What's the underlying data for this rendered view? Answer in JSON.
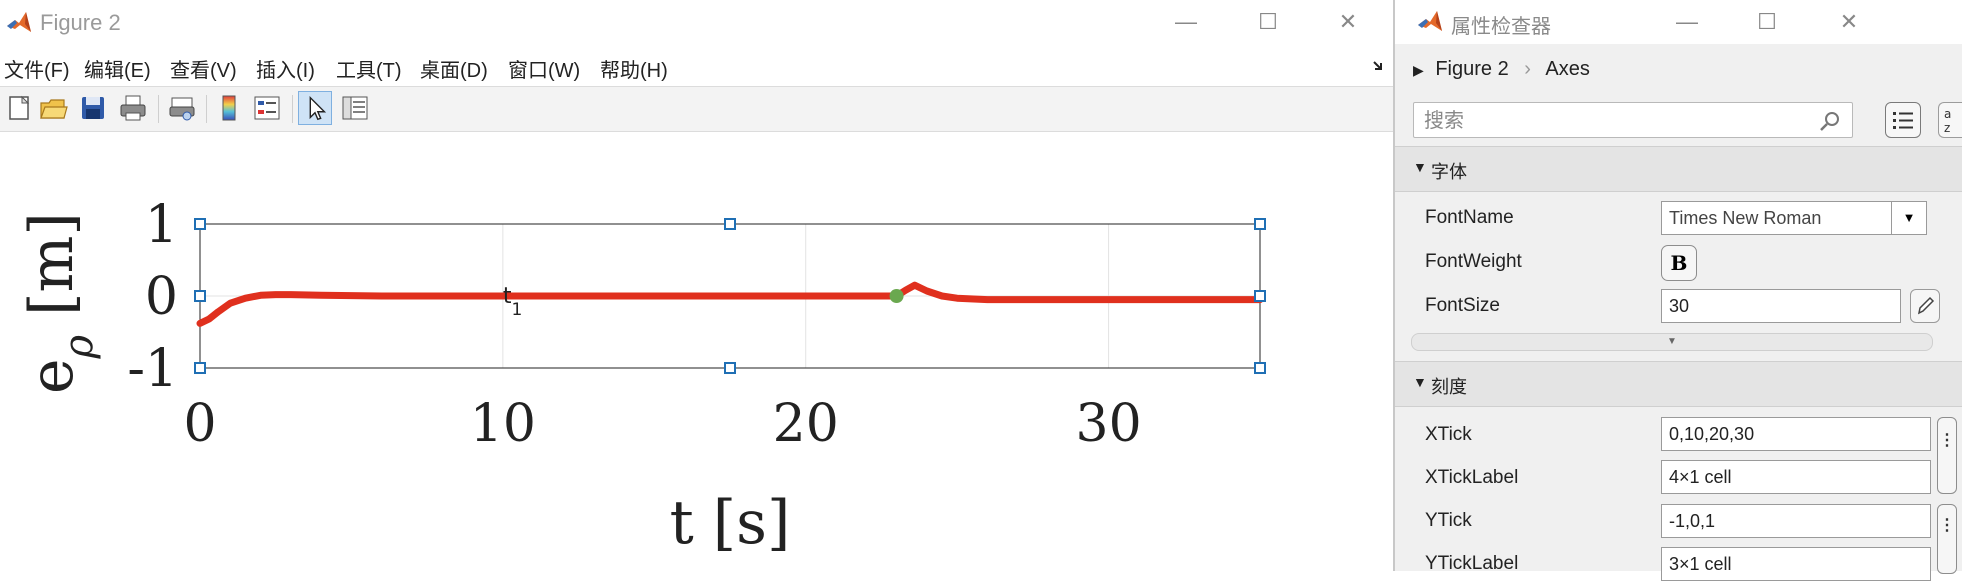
{
  "figure": {
    "title": "Figure 2",
    "menu": [
      "文件(F)",
      "编辑(E)",
      "查看(V)",
      "插入(I)",
      "工具(T)",
      "桌面(D)",
      "窗口(W)",
      "帮助(H)"
    ],
    "window_controls": {
      "minimize": "—",
      "maximize": "☐",
      "close": "✕"
    }
  },
  "chart_data": {
    "type": "line",
    "title": "",
    "xlabel": "t [s]",
    "ylabel": "e_ρ [m]",
    "xlim": [
      0,
      35
    ],
    "ylim": [
      -1,
      1
    ],
    "xticks": [
      0,
      10,
      20,
      30
    ],
    "xtick_labels": [
      "0",
      "10",
      "20",
      "30"
    ],
    "yticks": [
      -1,
      0,
      1
    ],
    "ytick_labels": [
      "-1",
      "0",
      "1"
    ],
    "grid": true,
    "annotation": {
      "text_main": "t",
      "text_sub": "1",
      "x": 10,
      "y": 0
    },
    "marker_point": {
      "x": 23,
      "y": 0,
      "color": "#6aa84f"
    },
    "series": [
      {
        "color": "#e0301e",
        "x": [
          0,
          0.3,
          0.6,
          1.0,
          1.5,
          2.0,
          2.5,
          3.0,
          4.0,
          6.0,
          10.0,
          15.0,
          20.0,
          23.0,
          23.3,
          23.6,
          24.0,
          24.5,
          25.0,
          26.0,
          28.0,
          31.0,
          35.0
        ],
        "y": [
          -0.38,
          -0.32,
          -0.22,
          -0.1,
          -0.03,
          0.01,
          0.02,
          0.02,
          0.01,
          0.0,
          0.0,
          0.0,
          0.0,
          0.0,
          0.08,
          0.15,
          0.07,
          0.0,
          -0.03,
          -0.05,
          -0.05,
          -0.05,
          -0.05
        ]
      }
    ]
  },
  "inspector": {
    "title": "属性检查器",
    "breadcrumb": {
      "root": "Figure 2",
      "current": "Axes"
    },
    "search": {
      "placeholder": "搜索"
    },
    "sections": [
      {
        "label": "字体",
        "props": [
          {
            "label": "FontName",
            "value": "Times New Roman"
          },
          {
            "label": "FontWeight",
            "value": "B"
          },
          {
            "label": "FontSize",
            "value": "30"
          }
        ]
      },
      {
        "label": "刻度",
        "props": [
          {
            "label": "XTick",
            "value": "0,10,20,30"
          },
          {
            "label": "XTickLabel",
            "value": "4×1 cell"
          },
          {
            "label": "YTick",
            "value": "-1,0,1"
          },
          {
            "label": "YTickLabel",
            "value": "3×1 cell"
          }
        ]
      }
    ]
  }
}
